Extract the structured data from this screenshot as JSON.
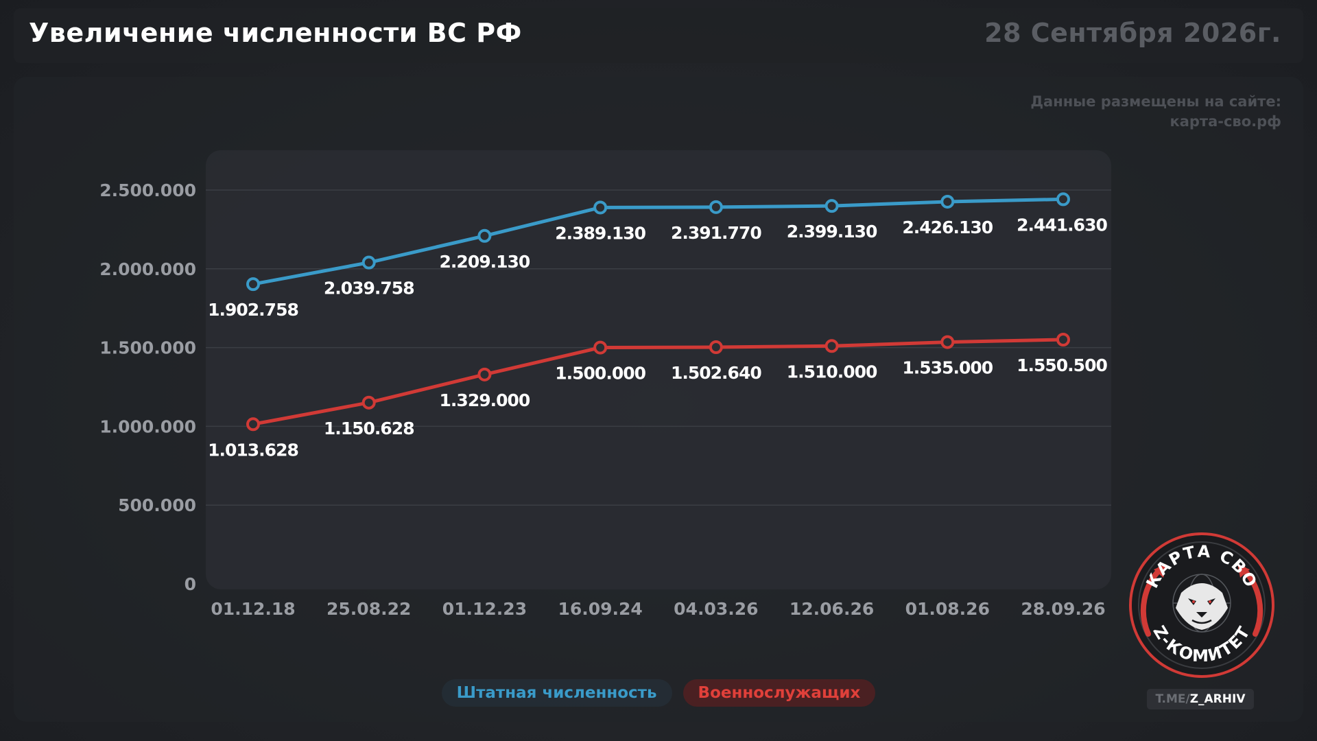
{
  "header": {
    "title": "Увеличение численности ВС РФ",
    "date": "28 Сентября 2026г."
  },
  "source_note": "Данные размещены на сайте: карта-сво.рф",
  "logo": {
    "top_text": "КАРТА СВО",
    "bottom_text": "Z-КОМИТЕТ",
    "icon": "lion-head-globe-icon",
    "ring_color": "#d13a36"
  },
  "telegram": {
    "prefix": "T.ME/",
    "name": "Z_ARHIV"
  },
  "colors": {
    "blue": "#3a9bc9",
    "red": "#d13a36"
  },
  "chart_data": {
    "type": "line",
    "categories": [
      "01.12.18",
      "25.08.22",
      "01.12.23",
      "16.09.24",
      "04.03.26",
      "12.06.26",
      "01.08.26",
      "28.09.26"
    ],
    "series": [
      {
        "name": "Штатная численность",
        "color": "#3a9bc9",
        "values": [
          1902758,
          2039758,
          2209130,
          2389130,
          2391770,
          2399130,
          2426130,
          2441630
        ],
        "labels": [
          "1.902.758",
          "2.039.758",
          "2.209.130",
          "2.389.130",
          "2.391.770",
          "2.399.130",
          "2.426.130",
          "2.441.630"
        ]
      },
      {
        "name": "Военнослужащих",
        "color": "#d13a36",
        "values": [
          1013628,
          1150628,
          1329000,
          1500000,
          1502640,
          1510000,
          1535000,
          1550500
        ],
        "labels": [
          "1.013.628",
          "1.150.628",
          "1.329.000",
          "1.500.000",
          "1.502.640",
          "1.510.000",
          "1.535.000",
          "1.550.500"
        ]
      }
    ],
    "yticks": [
      0,
      500000,
      1000000,
      1500000,
      2000000,
      2500000
    ],
    "ytick_labels": [
      "0",
      "500.000",
      "1.000.000",
      "1.500.000",
      "2.000.000",
      "2.500.000"
    ],
    "ylim": [
      0,
      2500000
    ],
    "grid": true,
    "legend": "bottom-center"
  }
}
